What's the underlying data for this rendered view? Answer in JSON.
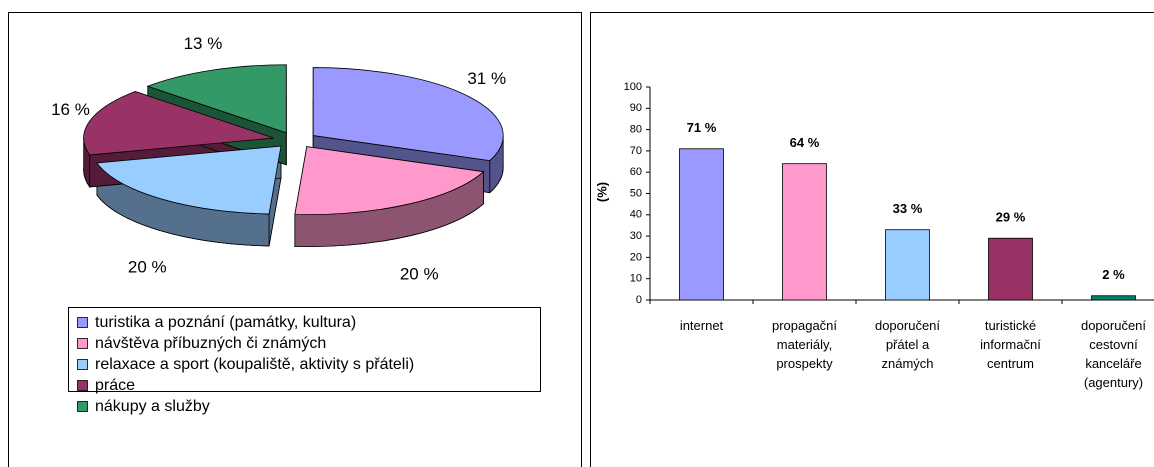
{
  "chart_data": [
    {
      "type": "pie",
      "labels": [
        "turistika a poznání (památky, kultura)",
        "návštěva příbuzných či známých",
        "relaxace a sport (koupaliště, aktivity s přáteli)",
        "práce",
        "nákupy  a služby"
      ],
      "values": [
        31,
        20,
        20,
        16,
        13
      ],
      "value_labels": [
        "31 %",
        "20 %",
        "20 %",
        "16 %",
        "13 %"
      ],
      "colors": [
        "#9999ff",
        "#ff99cc",
        "#99ccff",
        "#993366",
        "#339966"
      ]
    },
    {
      "type": "bar",
      "categories": [
        "internet",
        "propagační materiály, prospekty",
        "doporučení přátel a známých",
        "turistické informační centrum",
        "doporučení cestovní kanceláře (agentury)"
      ],
      "values": [
        71,
        64,
        33,
        29,
        2
      ],
      "value_labels": [
        "71 %",
        "64 %",
        "33 %",
        "29 %",
        "2 %"
      ],
      "colors": [
        "#9999ff",
        "#ff99cc",
        "#99ccff",
        "#993366",
        "#008066"
      ],
      "ylabel": "(%)",
      "ylim": [
        0,
        100
      ],
      "yticks": [
        0,
        10,
        20,
        30,
        40,
        50,
        60,
        70,
        80,
        90,
        100
      ]
    }
  ]
}
